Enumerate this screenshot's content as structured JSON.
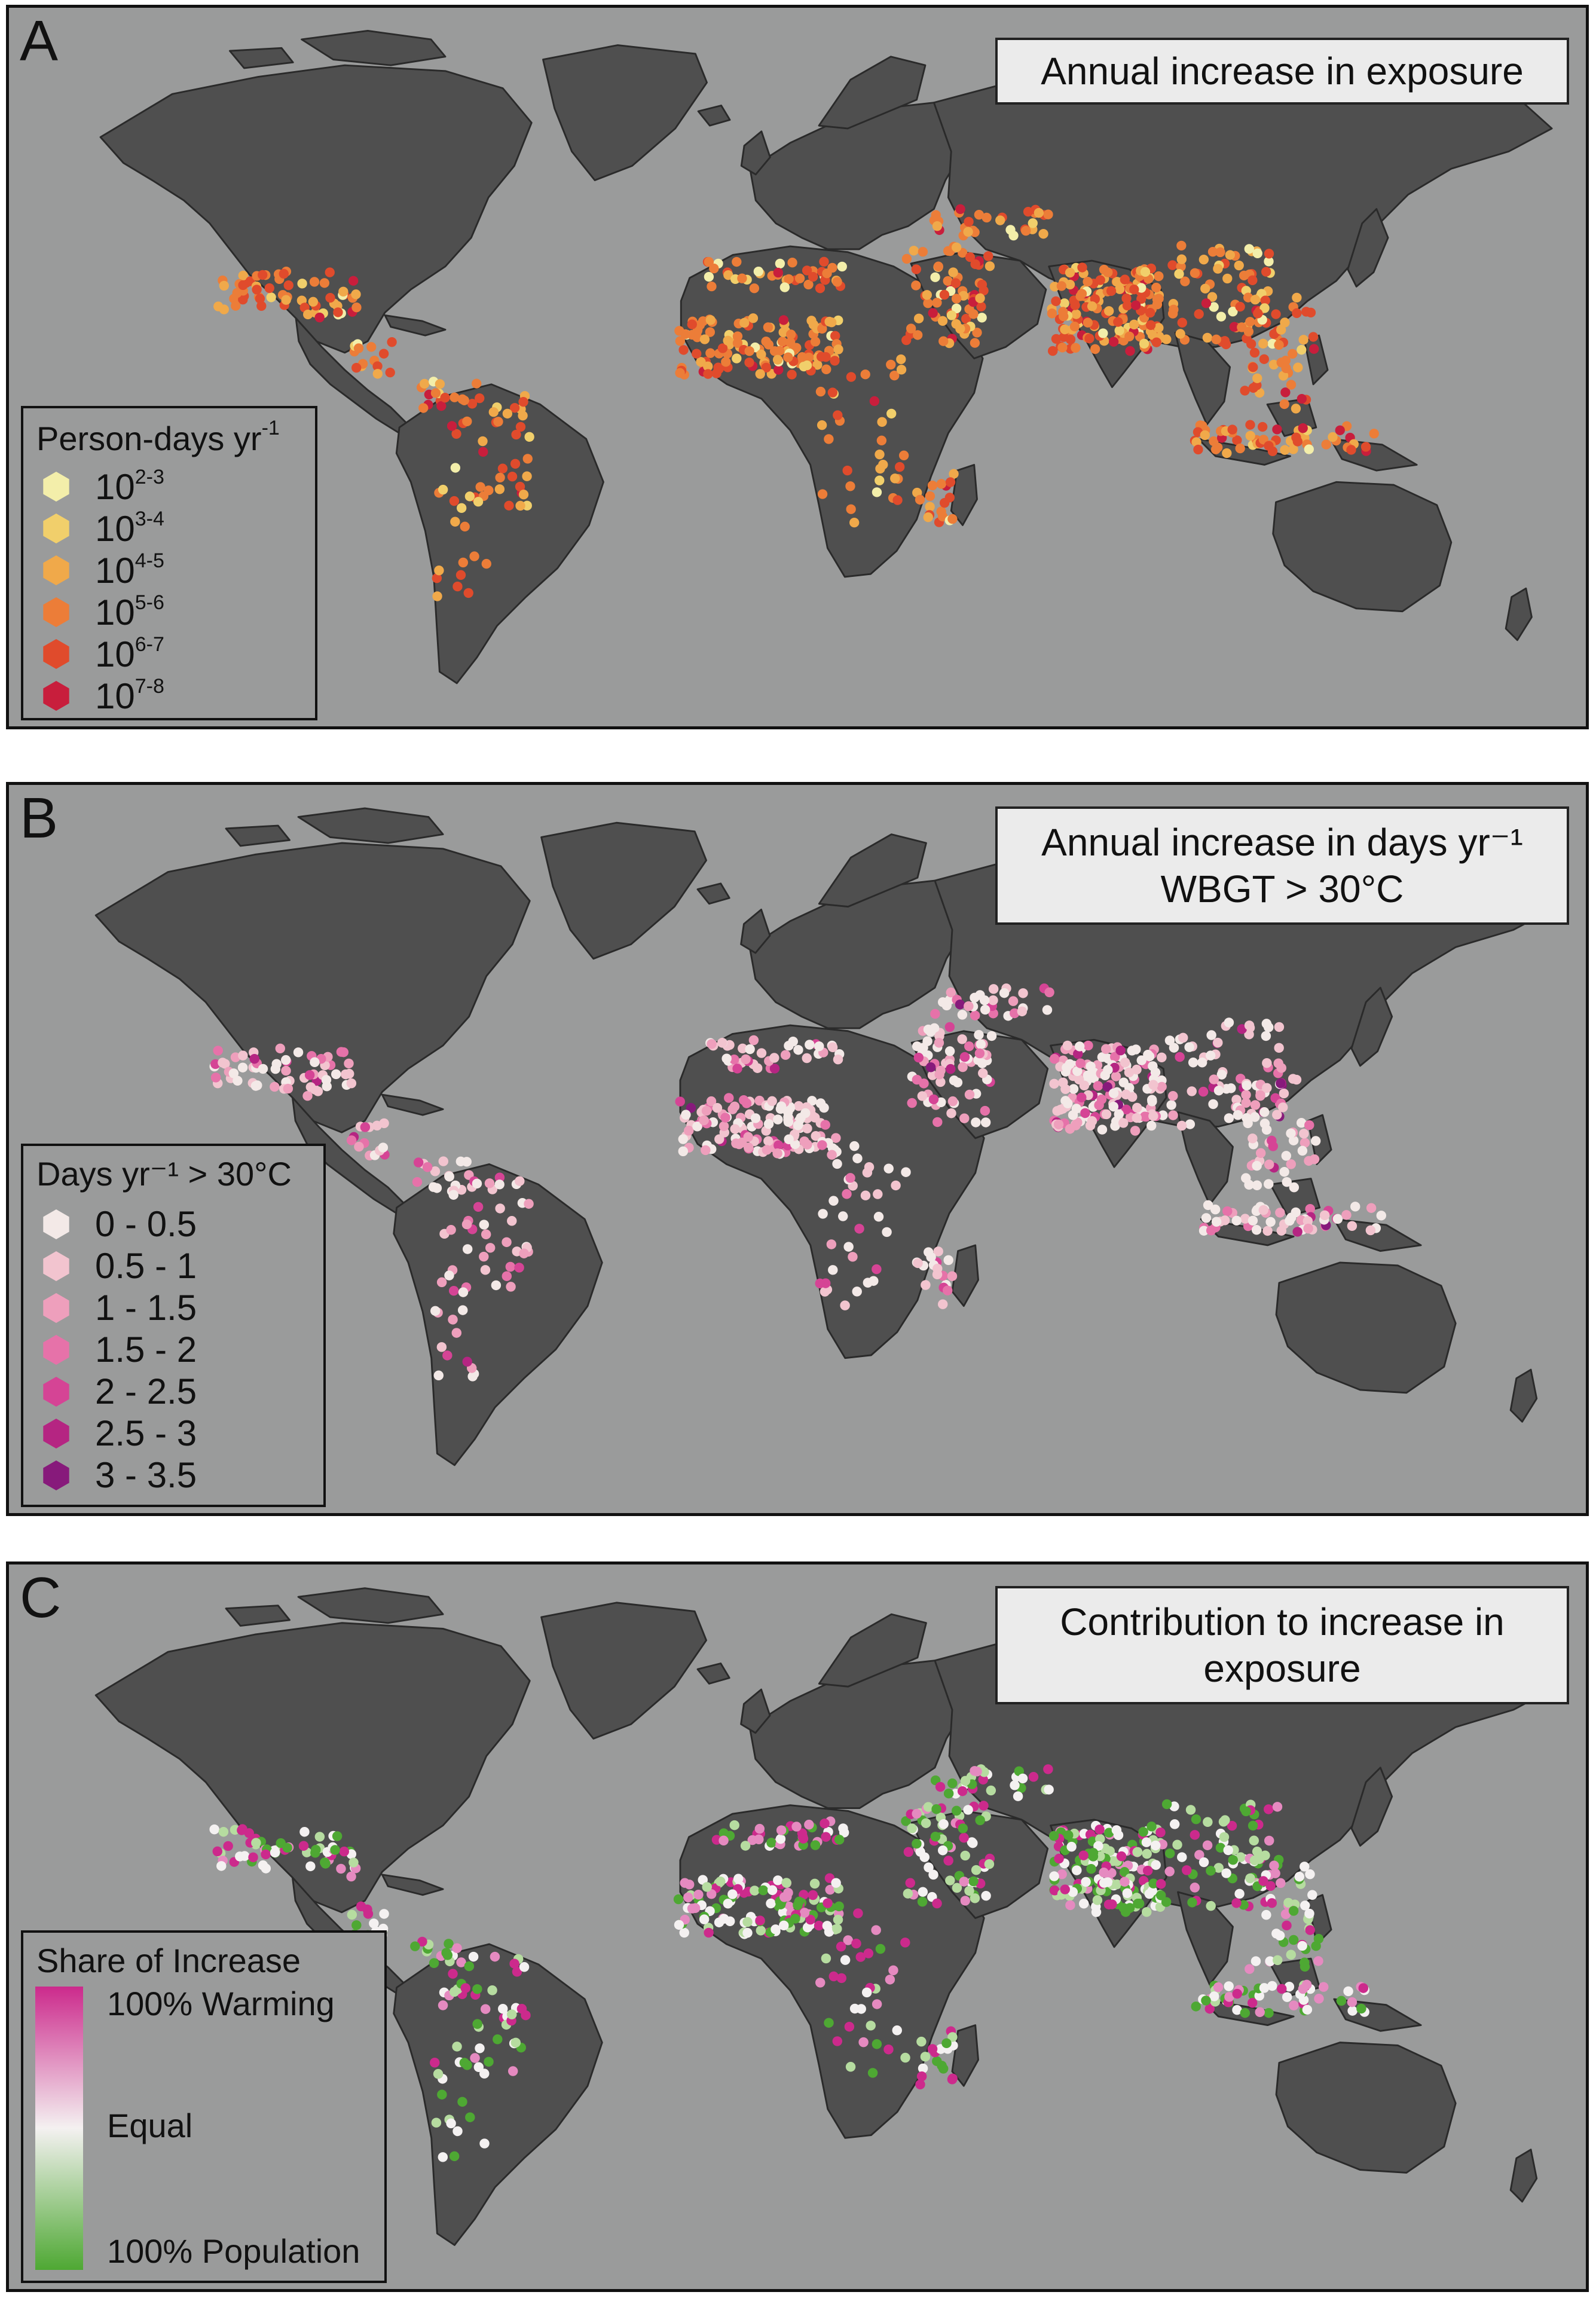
{
  "panels": [
    {
      "letter": "A",
      "title_lines": [
        "Annual increase in exposure"
      ],
      "legend": {
        "title_main": "Person-days yr",
        "title_sup": "-1",
        "items": [
          {
            "base": "10",
            "exp": "2-3",
            "color": "#f3eeaa"
          },
          {
            "base": "10",
            "exp": "3-4",
            "color": "#f1cf6b"
          },
          {
            "base": "10",
            "exp": "4-5",
            "color": "#f0a94a"
          },
          {
            "base": "10",
            "exp": "5-6",
            "color": "#ec7d38"
          },
          {
            "base": "10",
            "exp": "6-7",
            "color": "#e04b2c"
          },
          {
            "base": "10",
            "exp": "7-8",
            "color": "#c81e3c"
          }
        ]
      }
    },
    {
      "letter": "B",
      "title_lines": [
        "Annual increase in days yr⁻¹",
        "WBGT > 30°C"
      ],
      "legend": {
        "title": "Days yr⁻¹ > 30°C",
        "items": [
          {
            "label": "0 - 0.5",
            "color": "#f3e9e7"
          },
          {
            "label": "0.5 - 1",
            "color": "#f2c4cf"
          },
          {
            "label": "1 - 1.5",
            "color": "#ee9fbc"
          },
          {
            "label": "1.5 - 2",
            "color": "#e672a9"
          },
          {
            "label": "2 - 2.5",
            "color": "#d54495"
          },
          {
            "label": "2.5 - 3",
            "color": "#b52582"
          },
          {
            "label": "3 - 3.5",
            "color": "#871a7b"
          }
        ]
      }
    },
    {
      "letter": "C",
      "title_lines": [
        "Contribution to increase in",
        "exposure"
      ],
      "legend": {
        "title": "Share of Increase",
        "top_label": "100% Warming",
        "mid_label": "Equal",
        "bottom_label": "100% Population",
        "top_color": "#cc2a8c",
        "mid_color": "#f4f1f1",
        "bottom_color": "#4ea833"
      }
    }
  ],
  "colors": {
    "ocean": "#9a9b9b",
    "land": "#4f4f4f",
    "border": "#2a2a2a"
  }
}
